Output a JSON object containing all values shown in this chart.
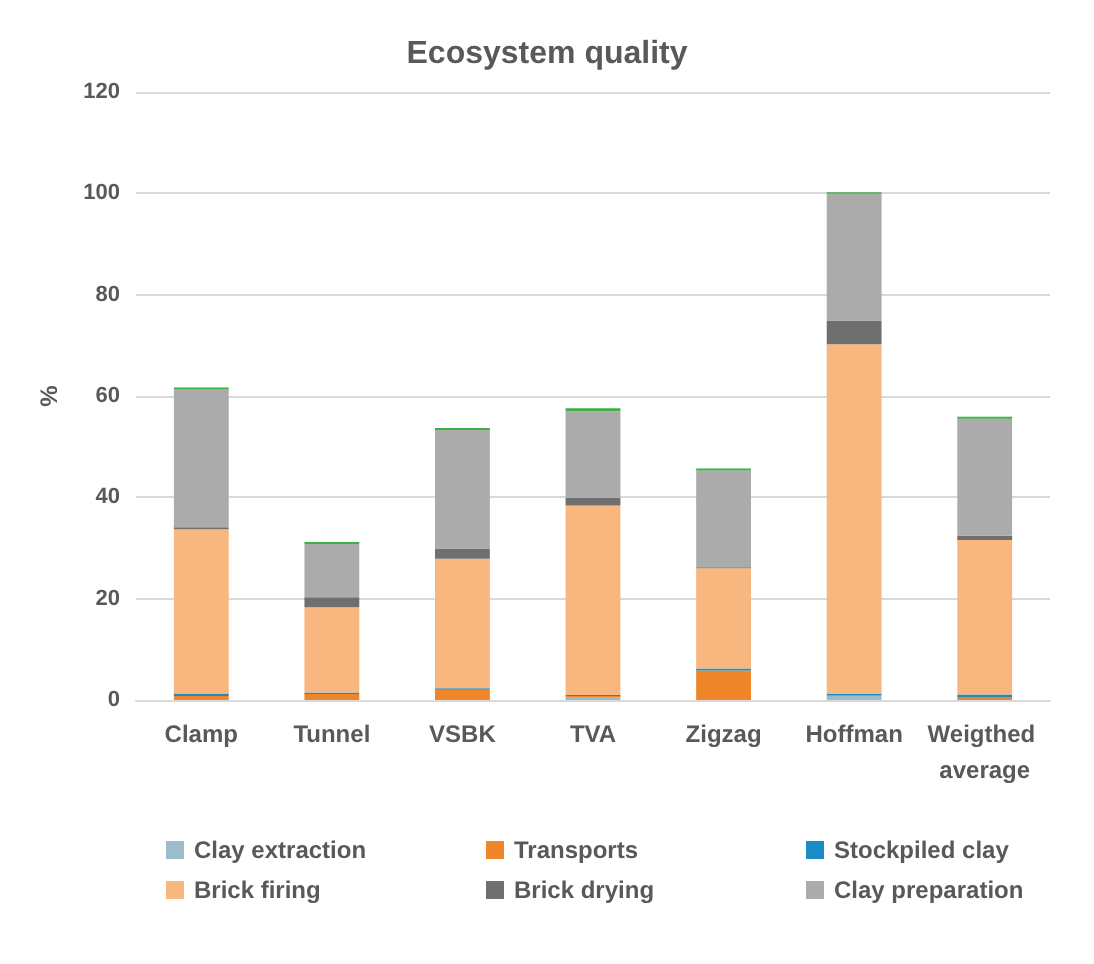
{
  "chart_data": {
    "type": "bar",
    "title": "Ecosystem quality",
    "ylabel": "%",
    "stacked": true,
    "grid": "y",
    "legend": "bottom",
    "categories": [
      "Clamp",
      "Tunnel",
      "VSBK",
      "TVA",
      "Zigzag",
      "Hoffman",
      "Weigthed average"
    ],
    "ylim": [
      0,
      120
    ],
    "yticks": [
      0,
      20,
      40,
      60,
      80,
      100,
      120
    ],
    "series": [
      {
        "name": "Clay extraction",
        "color": "#9dbccb",
        "values": [
          null,
          null,
          null,
          0.6,
          null,
          0.8,
          null
        ]
      },
      {
        "name": "Transports",
        "color": "#f0862a",
        "values": [
          0.8,
          1.2,
          2,
          0.2,
          5.8,
          0.2,
          0.6
        ]
      },
      {
        "name": "Stockpiled clay",
        "color": "#1b8dc4",
        "values": [
          0.5,
          0.3,
          0.3,
          0.2,
          0.4,
          0.2,
          0.5
        ]
      },
      {
        "name": "Brick firing",
        "color": "#f7b77f",
        "values": [
          32.4,
          16.8,
          25.6,
          37.4,
          19.8,
          69,
          30.5
        ]
      },
      {
        "name": "Brick drying",
        "color": "#6f6f6f",
        "values": [
          0.4,
          2,
          2,
          1.5,
          0.2,
          4.7,
          0.8
        ]
      },
      {
        "name": "Clay preparation",
        "color": "#ababab",
        "values": [
          27.2,
          10.5,
          23.4,
          17.1,
          19.1,
          25,
          23.1
        ]
      },
      {
        "color": "#3cb043",
        "values": [
          0.4,
          0.4,
          0.4,
          0.6,
          0.4,
          0.3,
          0.4
        ]
      }
    ]
  }
}
